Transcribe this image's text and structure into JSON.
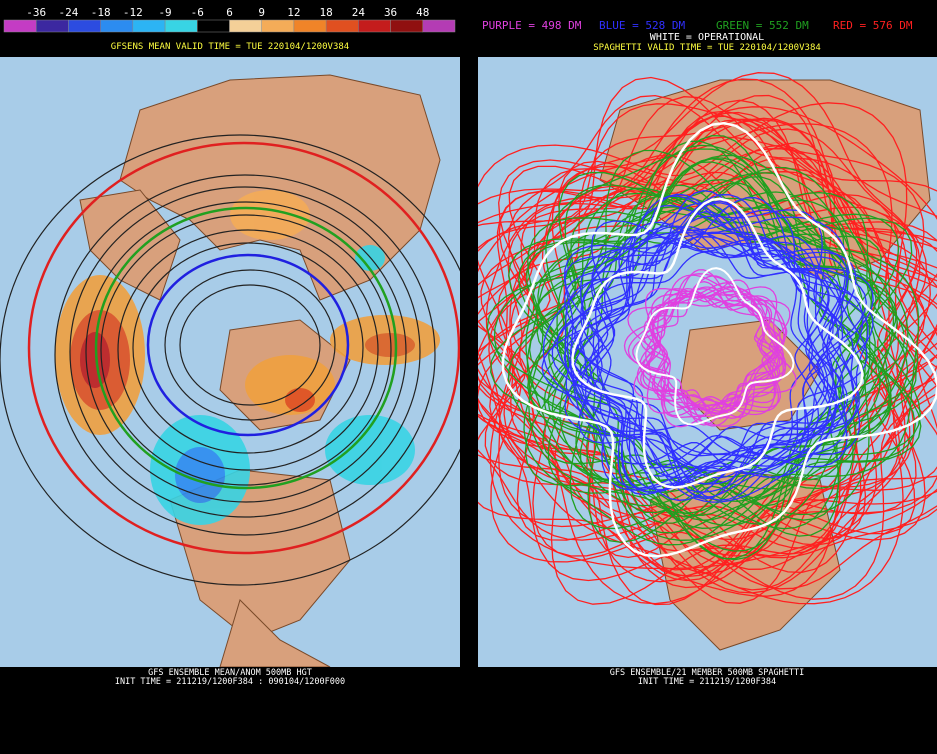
{
  "colorbar": {
    "labels": [
      -36,
      -24,
      -18,
      -12,
      -9,
      -6,
      6,
      9,
      12,
      18,
      24,
      36,
      48
    ],
    "colors": [
      "#c43cc4",
      "#3c28a0",
      "#2c4ce0",
      "#2c8cf0",
      "#2cb4f4",
      "#38d4e4",
      "#000000",
      "#f4d098",
      "#f4ac58",
      "#f08428",
      "#e05020",
      "#c41c1c",
      "#901010",
      "#b43cb4"
    ]
  },
  "left": {
    "title": "GFSENS MEAN VALID TIME = TUE 220104/1200V384",
    "footer": [
      "GFS ENSEMBLE MEAN/ANOM 500MB HGT",
      "INIT TIME = 211219/1200F384 : 090104/1200F000"
    ]
  },
  "right": {
    "legend": [
      {
        "label": "PURPLE = 498 DM",
        "color": "#e040e0"
      },
      {
        "label": "BLUE = 528 DM",
        "color": "#3030ff"
      },
      {
        "label": "GREEN = 552 DM",
        "color": "#20a020"
      },
      {
        "label": "RED = 576 DM",
        "color": "#ff2020"
      }
    ],
    "operational": "WHITE = OPERATIONAL",
    "title": "SPAGHETTI VALID TIME = TUE 220104/1200V384",
    "footer": [
      "GFS ENSEMBLE/21 MEMBER 500MB SPAGHETTI",
      "INIT TIME = 211219/1200F384"
    ]
  }
}
